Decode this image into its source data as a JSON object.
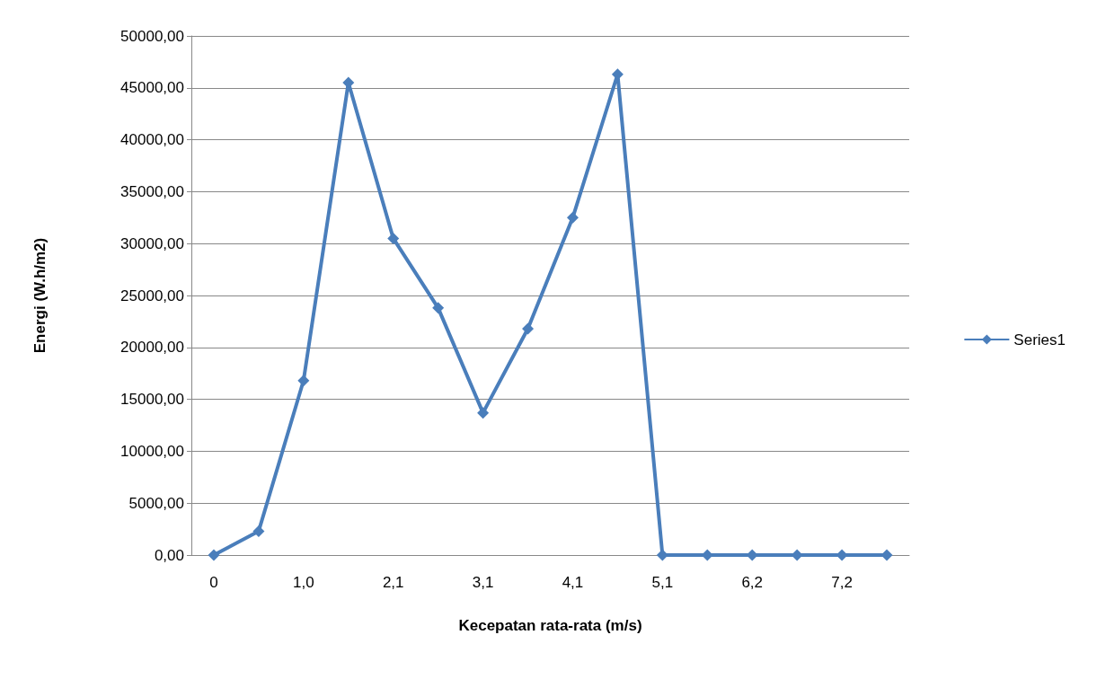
{
  "chart_data": {
    "type": "line",
    "xlabel": "Kecepatan rata-rata (m/s)",
    "ylabel": "Energi (W.h/m2)",
    "categories": [
      "0",
      null,
      "1,0",
      null,
      "2,1",
      null,
      "3,1",
      null,
      "4,1",
      null,
      "5,1",
      null,
      "6,2",
      null,
      "7,2",
      null
    ],
    "series": [
      {
        "name": "Series1",
        "color": "#4a7ebb",
        "values": [
          0,
          2300,
          16800,
          45500,
          30500,
          23800,
          13700,
          21800,
          32500,
          46300,
          0,
          0,
          0,
          0,
          0,
          0
        ]
      }
    ],
    "ylim": [
      0,
      50000
    ],
    "yticks": [
      {
        "value": 0,
        "label": "0,00"
      },
      {
        "value": 5000,
        "label": "5000,00"
      },
      {
        "value": 10000,
        "label": "10000,00"
      },
      {
        "value": 15000,
        "label": "15000,00"
      },
      {
        "value": 20000,
        "label": "20000,00"
      },
      {
        "value": 25000,
        "label": "25000,00"
      },
      {
        "value": 30000,
        "label": "30000,00"
      },
      {
        "value": 35000,
        "label": "35000,00"
      },
      {
        "value": 40000,
        "label": "40000,00"
      },
      {
        "value": 45000,
        "label": "45000,00"
      },
      {
        "value": 50000,
        "label": "50000,00"
      }
    ],
    "grid": "y",
    "legend": "right",
    "marker": "diamond",
    "line_style": "solid"
  }
}
